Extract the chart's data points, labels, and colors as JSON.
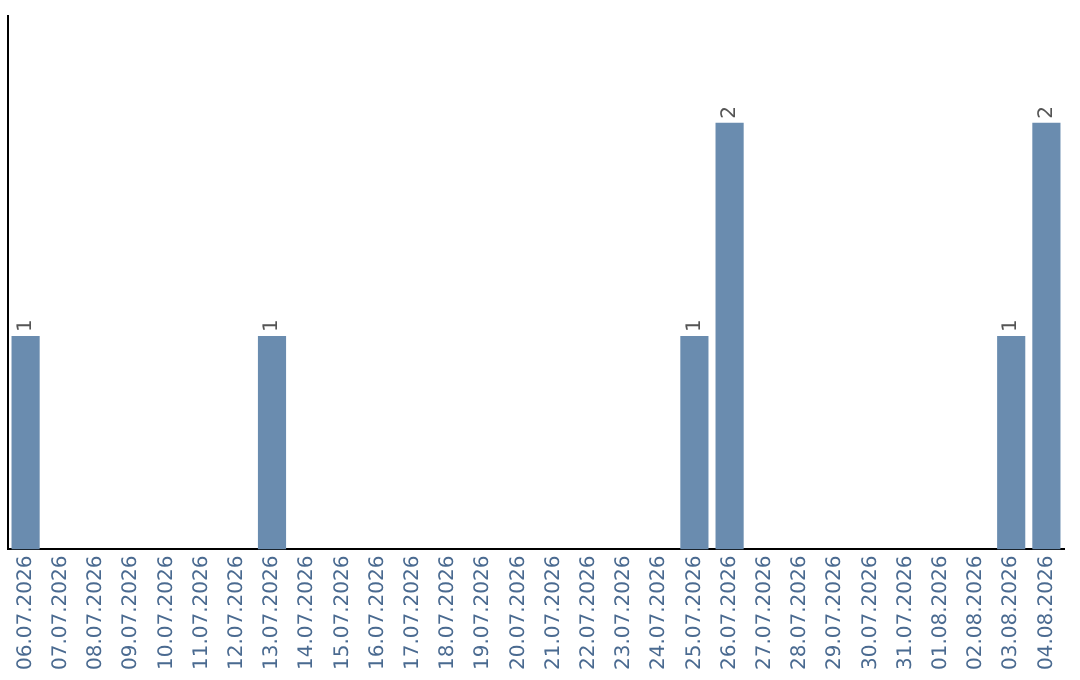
{
  "chart_data": {
    "type": "bar",
    "categories": [
      "06.07.2026",
      "07.07.2026",
      "08.07.2026",
      "09.07.2026",
      "10.07.2026",
      "11.07.2026",
      "12.07.2026",
      "13.07.2026",
      "14.07.2026",
      "15.07.2026",
      "16.07.2026",
      "17.07.2026",
      "18.07.2026",
      "19.07.2026",
      "20.07.2026",
      "21.07.2026",
      "22.07.2026",
      "23.07.2026",
      "24.07.2026",
      "25.07.2026",
      "26.07.2026",
      "27.07.2026",
      "28.07.2026",
      "29.07.2026",
      "30.07.2026",
      "31.07.2026",
      "01.08.2026",
      "02.08.2026",
      "03.08.2026",
      "04.08.2026"
    ],
    "values": [
      1,
      0,
      0,
      0,
      0,
      0,
      0,
      1,
      0,
      0,
      0,
      0,
      0,
      0,
      0,
      0,
      0,
      0,
      0,
      1,
      2,
      0,
      0,
      0,
      0,
      0,
      0,
      0,
      1,
      2
    ],
    "value_labels": [
      "1",
      null,
      null,
      null,
      null,
      null,
      null,
      "1",
      null,
      null,
      null,
      null,
      null,
      null,
      null,
      null,
      null,
      null,
      null,
      "1",
      "2",
      null,
      null,
      null,
      null,
      null,
      null,
      null,
      "1",
      "2"
    ],
    "color": "#6a8caf",
    "grid": false,
    "legend": false,
    "tick_labels": "x"
  }
}
